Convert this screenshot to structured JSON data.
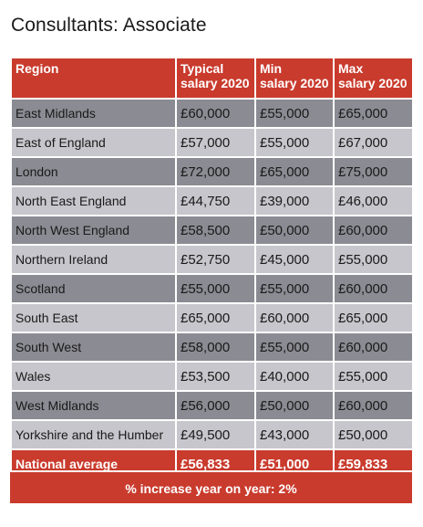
{
  "title": "Consultants:  Associate",
  "columns": [
    "Region",
    "Typical\nsalary 2020",
    "Min\nsalary 2020",
    "Max\nsalary 2020"
  ],
  "rows": [
    {
      "region": "East Midlands",
      "typical": "£60,000",
      "min": "£55,000",
      "max": "£65,000"
    },
    {
      "region": "East of England",
      "typical": "£57,000",
      "min": "£55,000",
      "max": "£67,000"
    },
    {
      "region": "London",
      "typical": "£72,000",
      "min": "£65,000",
      "max": "£75,000"
    },
    {
      "region": "North East England",
      "typical": "£44,750",
      "min": "£39,000",
      "max": "£46,000"
    },
    {
      "region": "North West England",
      "typical": "£58,500",
      "min": "£50,000",
      "max": "£60,000"
    },
    {
      "region": "Northern Ireland",
      "typical": "£52,750",
      "min": "£45,000",
      "max": "£55,000"
    },
    {
      "region": "Scotland",
      "typical": "£55,000",
      "min": "£55,000",
      "max": "£60,000"
    },
    {
      "region": "South East",
      "typical": "£65,000",
      "min": "£60,000",
      "max": "£65,000"
    },
    {
      "region": "South West",
      "typical": "£58,000",
      "min": "£55,000",
      "max": "£60,000"
    },
    {
      "region": "Wales",
      "typical": "£53,500",
      "min": "£40,000",
      "max": "£55,000"
    },
    {
      "region": "West Midlands",
      "typical": "£56,000",
      "min": "£50,000",
      "max": "£60,000"
    },
    {
      "region": "Yorkshire and the Humber",
      "typical": "£49,500",
      "min": "£43,000",
      "max": "£50,000"
    }
  ],
  "average": {
    "region": "National average",
    "typical": "£56,833",
    "min": "£51,000",
    "max": "£59,833"
  },
  "footer": "% increase year on year: 2%",
  "colors": {
    "header_red": "#c93b2d",
    "row_dark": "#8b8b93",
    "row_light": "#c6c6cc"
  }
}
